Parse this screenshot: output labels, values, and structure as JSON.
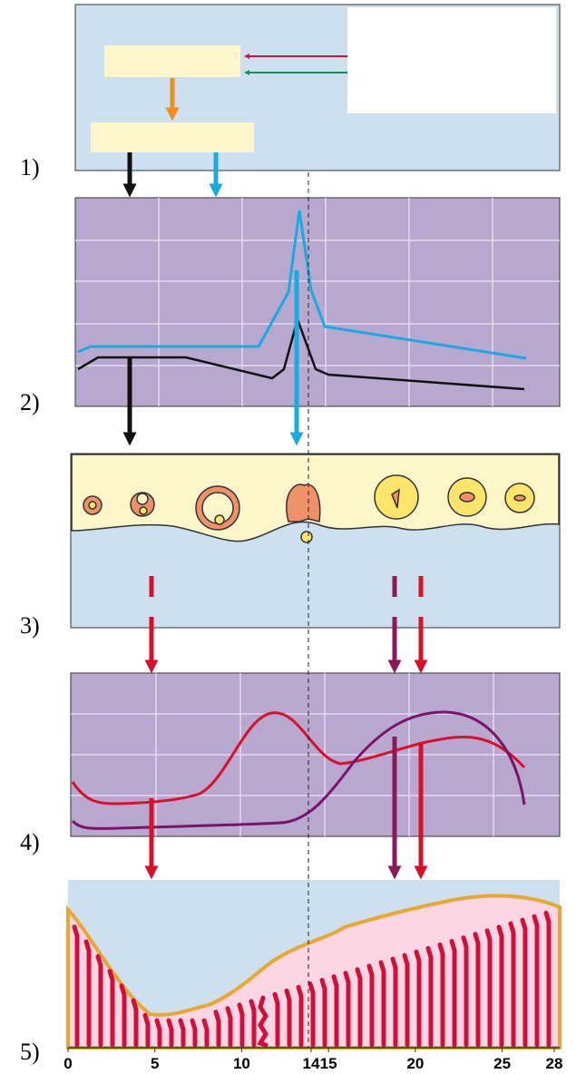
{
  "panel_labels": [
    "1)",
    "2)",
    "3)",
    "4)",
    "5)"
  ],
  "axis": {
    "ticks": [
      0,
      5,
      10,
      14,
      15,
      20,
      25,
      28
    ],
    "range": [
      0,
      28
    ]
  }
}
